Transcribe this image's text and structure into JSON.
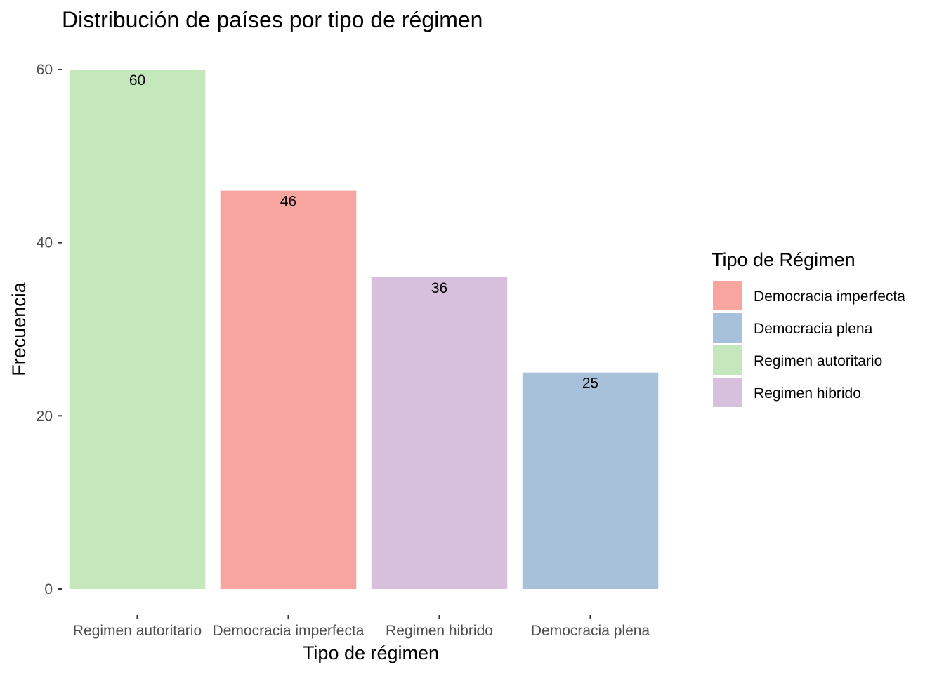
{
  "chart_data": {
    "type": "bar",
    "title": "Distribución de países por tipo de régimen",
    "xlabel": "Tipo de régimen",
    "ylabel": "Frecuencia",
    "categories": [
      "Regimen autoritario",
      "Democracia imperfecta",
      "Regimen hibrido",
      "Democracia plena"
    ],
    "values": [
      60,
      46,
      36,
      25
    ],
    "data_labels": [
      "60",
      "46",
      "36",
      "25"
    ],
    "ylim": [
      0,
      60
    ],
    "yticks": [
      0,
      20,
      40,
      60
    ],
    "grid": false,
    "legend": {
      "title": "Tipo de Régimen",
      "placement": "right",
      "entries": [
        "Democracia imperfecta",
        "Democracia plena",
        "Regimen autoritario",
        "Regimen hibrido"
      ]
    },
    "colors": {
      "Democracia imperfecta": "#f8a59f",
      "Democracia plena": "#a8c1da",
      "Regimen autoritario": "#c4e8bb",
      "Regimen hibrido": "#d7c0dc"
    }
  }
}
